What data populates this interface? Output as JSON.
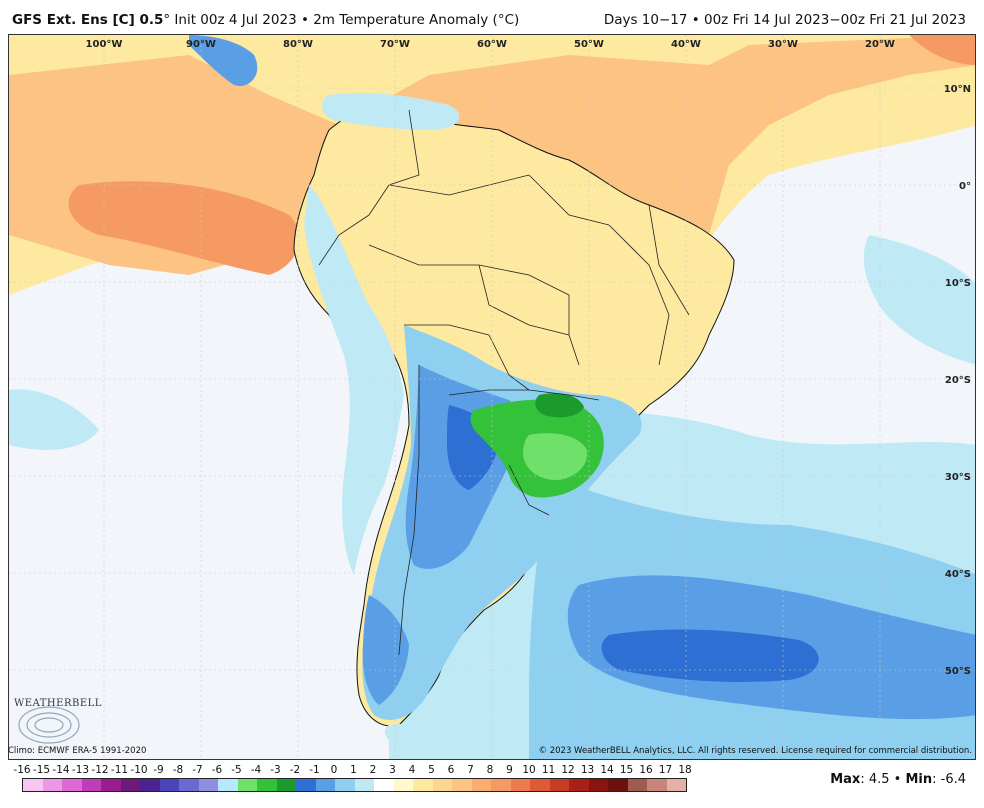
{
  "header": {
    "model": "GFS Ext.  Ens [C] 0.5",
    "model_suffix": "° Init 00z 4 Jul 2023 • 2m Temperature Anomaly (°C)",
    "valid": "Days 10−17 • 00z Fri 14 Jul 2023−00z Fri 21 Jul 2023"
  },
  "map": {
    "lon_labels": [
      "100°W",
      "90°W",
      "80°W",
      "70°W",
      "60°W",
      "50°W",
      "40°W",
      "30°W",
      "20°W"
    ],
    "lat_labels": [
      "10°N",
      "0°",
      "10°S",
      "20°S",
      "30°S",
      "40°S",
      "50°S"
    ],
    "logo_text": "WEATHERBELL",
    "colors": {
      "ocean_neutral": "#f2f6fa",
      "warm_light": "#fde9a0",
      "warm_mid": "#fcc383",
      "warm_strong": "#f59a62",
      "warm_hot": "#ec7a4a",
      "cool_light": "#bfe9f5",
      "cool_mid": "#8fcff0",
      "cool_blue": "#5a9fe6",
      "cool_deep": "#2e6fd4",
      "green_light": "#6fe06a",
      "green_mid": "#34c23a",
      "green_dark": "#1c9a2c",
      "coast": "#111111"
    }
  },
  "footer": {
    "climo": "Climo: ECMWF ERA-5 1991-2020",
    "copyright": "© 2023 WeatherBELL Analytics, LLC. All rights reserved. License required for commercial distribution.",
    "scale_values": [
      "-16",
      "-15",
      "-14",
      "-13",
      "-12",
      "-11",
      "-10",
      "-9",
      "-8",
      "-7",
      "-6",
      "-5",
      "-4",
      "-3",
      "-2",
      "-1",
      "0",
      "1",
      "2",
      "3",
      "4",
      "5",
      "6",
      "7",
      "8",
      "9",
      "10",
      "11",
      "12",
      "13",
      "14",
      "15",
      "16",
      "17",
      "18"
    ],
    "scale_colors": [
      "#f7c6f2",
      "#ec98e6",
      "#dd68d6",
      "#c13cb8",
      "#9a1d8f",
      "#6e1a7a",
      "#4b2390",
      "#4a44b8",
      "#6a6ad0",
      "#8f8fe2",
      "#b8e8ff",
      "#6fe06a",
      "#34c23a",
      "#1c9a2c",
      "#2e6fd4",
      "#5a9fe6",
      "#8fcff0",
      "#bfe9f5",
      "#ffffff",
      "#fffacc",
      "#fde9a0",
      "#fcd592",
      "#fcc383",
      "#f9ae70",
      "#f59a62",
      "#ec7a4a",
      "#de5a36",
      "#c83c26",
      "#a82018",
      "#8a1410",
      "#6e100c",
      "#a05a50",
      "#c8867a",
      "#e3b1a6",
      "#c21a1a"
    ],
    "max_label": "Max",
    "max_value": "4.5",
    "min_label": "Min",
    "min_value": "-6.4"
  }
}
